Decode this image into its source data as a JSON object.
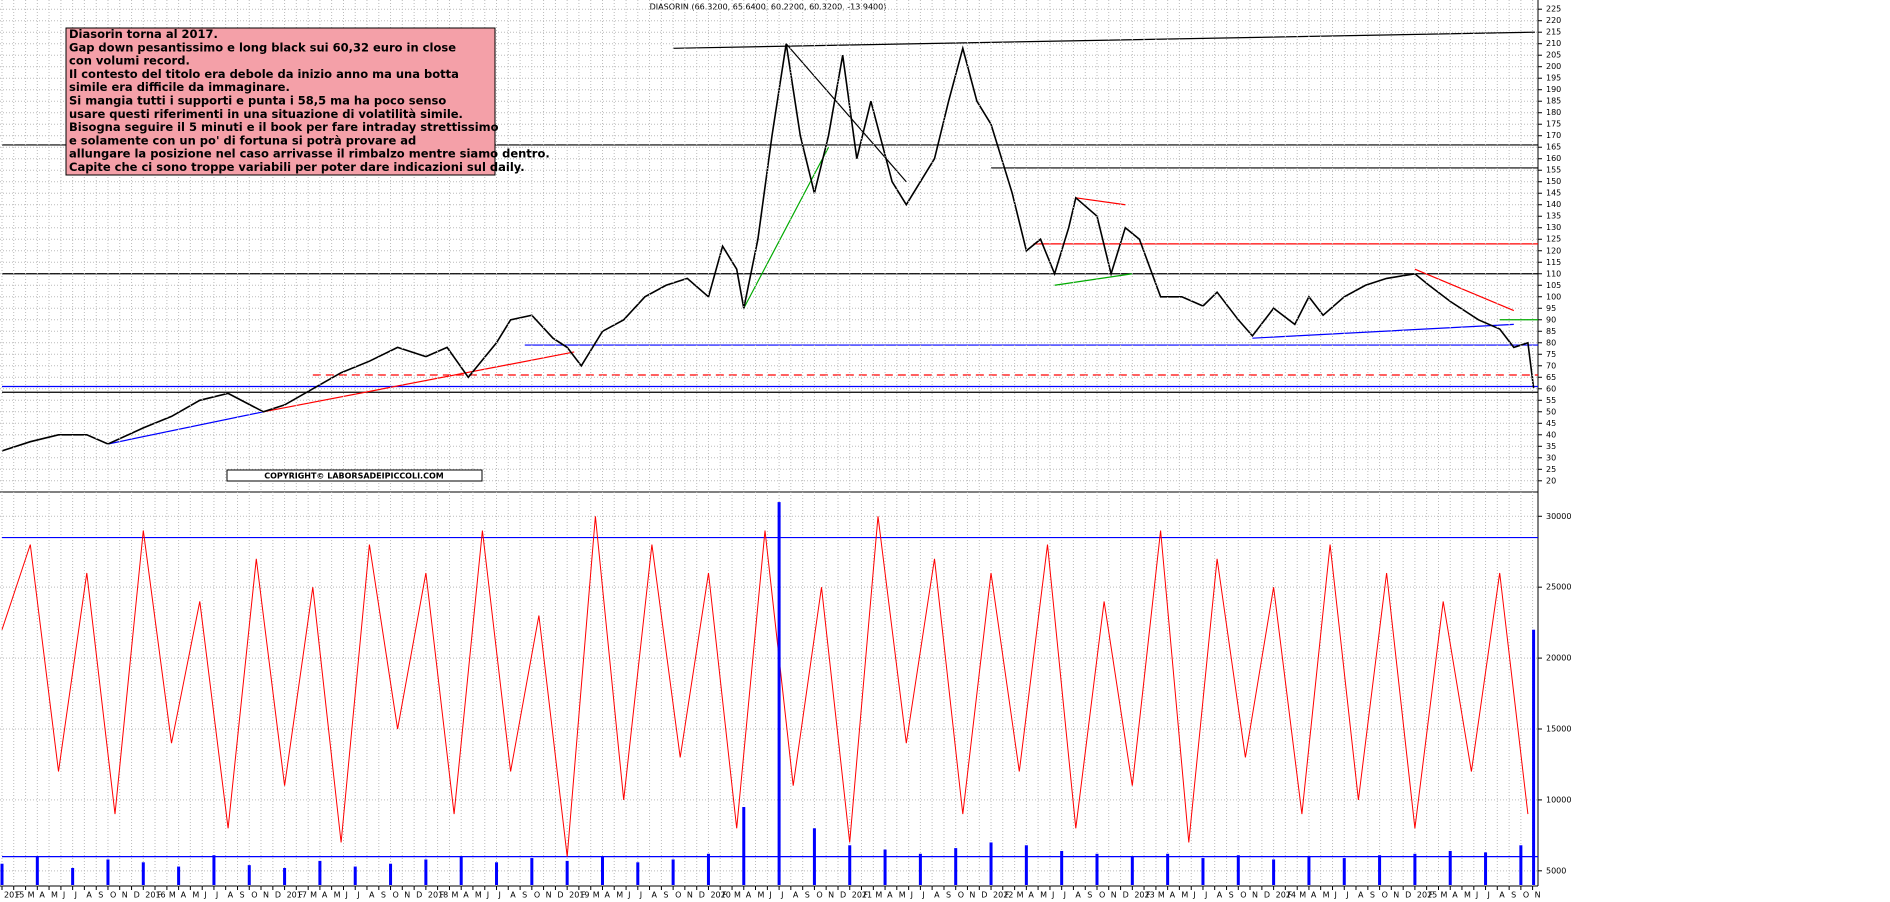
{
  "chart_data": [
    {
      "type": "line",
      "title": "DIASORIN (66.3200, 65.6400, 60.2200, 60.3200, -13.9400)",
      "annotations": [
        "Diasorin torna al 2017.",
        "Gap down pesantissimo e long black sui 60,32 euro in close",
        "con volumi record.",
        "Il contesto del titolo era debole da inizio anno ma una botta",
        "simile era difficile da immaginare.",
        "Si mangia tutti i supporti e punta i 58,5 ma ha poco senso",
        "usare questi riferimenti in una situazione di volatilità simile.",
        "Bisogna seguire il 5 minuti e il book per fare intraday strettissimo",
        "e solamente con un po' di fortuna si potrà provare ad",
        "allungare la posizione nel caso arrivasse il rimbalzo mentre siamo dentro.",
        "Capite che ci sono troppe variabili per poter dare indicazioni sul daily."
      ],
      "copyright": "COPYRIGHT© LABORSADEIPICCOLI.COM",
      "xlim": [
        2015.0,
        2025.85
      ],
      "ylim": [
        16,
        229
      ],
      "grid": true,
      "color": "#000000",
      "yticks": [
        20,
        25,
        30,
        35,
        40,
        45,
        50,
        55,
        60,
        65,
        70,
        75,
        80,
        85,
        90,
        95,
        100,
        105,
        110,
        115,
        120,
        125,
        130,
        135,
        140,
        145,
        150,
        155,
        160,
        165,
        170,
        175,
        180,
        185,
        190,
        195,
        200,
        205,
        210,
        215,
        220,
        225
      ],
      "x": [
        2015.0,
        2015.2,
        2015.4,
        2015.6,
        2015.75,
        2016.0,
        2016.2,
        2016.4,
        2016.6,
        2016.85,
        2017.0,
        2017.2,
        2017.4,
        2017.6,
        2017.8,
        2018.0,
        2018.15,
        2018.3,
        2018.5,
        2018.6,
        2018.75,
        2018.9,
        2019.0,
        2019.1,
        2019.25,
        2019.4,
        2019.55,
        2019.7,
        2019.85,
        2020.0,
        2020.1,
        2020.2,
        2020.25,
        2020.35,
        2020.45,
        2020.55,
        2020.65,
        2020.75,
        2020.85,
        2020.95,
        2021.05,
        2021.15,
        2021.3,
        2021.4,
        2021.5,
        2021.6,
        2021.7,
        2021.8,
        2021.9,
        2022.0,
        2022.05,
        2022.15,
        2022.25,
        2022.35,
        2022.45,
        2022.55,
        2022.6,
        2022.75,
        2022.85,
        2022.95,
        2023.05,
        2023.2,
        2023.35,
        2023.5,
        2023.6,
        2023.75,
        2023.85,
        2024.0,
        2024.15,
        2024.25,
        2024.35,
        2024.5,
        2024.65,
        2024.8,
        2025.0,
        2025.1,
        2025.25,
        2025.45,
        2025.6,
        2025.7,
        2025.8,
        2025.84
      ],
      "values": [
        33,
        37,
        40,
        40,
        36,
        43,
        48,
        55,
        58,
        50,
        53,
        60,
        67,
        72,
        78,
        74,
        78,
        65,
        80,
        90,
        92,
        82,
        78,
        70,
        85,
        90,
        100,
        105,
        108,
        100,
        122,
        112,
        95,
        125,
        170,
        210,
        170,
        145,
        170,
        205,
        160,
        185,
        150,
        140,
        150,
        160,
        185,
        208,
        185,
        175,
        165,
        145,
        120,
        125,
        110,
        130,
        143,
        135,
        110,
        130,
        125,
        100,
        100,
        96,
        102,
        90,
        83,
        95,
        88,
        100,
        92,
        100,
        105,
        108,
        110,
        105,
        98,
        90,
        86,
        78,
        80,
        60.32
      ],
      "levels": [
        {
          "value": 166,
          "color": "#000000",
          "from": 2015.0
        },
        {
          "value": 156,
          "color": "#000000",
          "from": 2022.0
        },
        {
          "value": 110,
          "color": "#000000",
          "from": 2015.0
        },
        {
          "value": 58.5,
          "color": "#000000",
          "from": 2015.0
        },
        {
          "value": 61,
          "color": "#0000ff",
          "from": 2015.0
        },
        {
          "value": 79,
          "color": "#0000ff",
          "from": 2018.7
        },
        {
          "value": 66,
          "color": "#ff0000",
          "from": 2017.2,
          "dash": true
        },
        {
          "value": 123,
          "color": "#ff0000",
          "from": 2022.3
        },
        {
          "value": 90,
          "color": "#00aa00",
          "from": 2025.6
        }
      ],
      "trendlines": [
        {
          "x": [
            2019.75,
            2025.85
          ],
          "y": [
            208,
            215
          ],
          "color": "#000000"
        },
        {
          "x": [
            2016.85,
            2019.05
          ],
          "y": [
            50,
            76
          ],
          "color": "#ff0000"
        },
        {
          "x": [
            2015.75,
            2016.85
          ],
          "y": [
            36,
            50
          ],
          "color": "#0000ff"
        },
        {
          "x": [
            2020.25,
            2020.85
          ],
          "y": [
            95,
            165
          ],
          "color": "#00aa00"
        },
        {
          "x": [
            2020.55,
            2021.4
          ],
          "y": [
            210,
            150
          ],
          "color": "#000000"
        },
        {
          "x": [
            2022.45,
            2023.0
          ],
          "y": [
            105,
            110
          ],
          "color": "#00aa00"
        },
        {
          "x": [
            2022.6,
            2022.95
          ],
          "y": [
            143,
            140
          ],
          "color": "#ff0000"
        },
        {
          "x": [
            2023.85,
            2025.7
          ],
          "y": [
            82,
            88
          ],
          "color": "#0000ff"
        },
        {
          "x": [
            2025.0,
            2025.7
          ],
          "y": [
            112,
            94
          ],
          "color": "#ff0000"
        }
      ]
    },
    {
      "type": "line",
      "xlim": [
        2015.0,
        2025.85
      ],
      "ylim": [
        4000,
        31500
      ],
      "grid": true,
      "yticks": [
        5000,
        10000,
        15000,
        20000,
        25000,
        30000
      ],
      "xticks": [
        2015,
        {
          "value": 2015.083,
          "label": "F"
        },
        {
          "value": 2015.167,
          "label": "M"
        },
        {
          "value": 2015.25,
          "label": "A"
        },
        {
          "value": 2015.333,
          "label": "M"
        },
        {
          "value": 2015.417,
          "label": "J"
        },
        {
          "value": 2015.5,
          "label": "J"
        },
        {
          "value": 2015.583,
          "label": "A"
        },
        {
          "value": 2015.667,
          "label": "S"
        },
        {
          "value": 2015.75,
          "label": "O"
        },
        {
          "value": 2015.833,
          "label": "N"
        },
        {
          "value": 2015.917,
          "label": "D"
        },
        2016,
        {
          "value": 2016.083,
          "label": "F"
        },
        {
          "value": 2016.167,
          "label": "M"
        },
        {
          "value": 2016.25,
          "label": "A"
        },
        {
          "value": 2016.333,
          "label": "M"
        },
        {
          "value": 2016.417,
          "label": "J"
        },
        {
          "value": 2016.5,
          "label": "J"
        },
        {
          "value": 2016.583,
          "label": "A"
        },
        {
          "value": 2016.667,
          "label": "S"
        },
        {
          "value": 2016.75,
          "label": "O"
        },
        {
          "value": 2016.833,
          "label": "N"
        },
        {
          "value": 2016.917,
          "label": "D"
        },
        2017,
        {
          "value": 2017.083,
          "label": "F"
        },
        {
          "value": 2017.167,
          "label": "M"
        },
        {
          "value": 2017.25,
          "label": "A"
        },
        {
          "value": 2017.333,
          "label": "M"
        },
        {
          "value": 2017.417,
          "label": "J"
        },
        {
          "value": 2017.5,
          "label": "J"
        },
        {
          "value": 2017.583,
          "label": "A"
        },
        {
          "value": 2017.667,
          "label": "S"
        },
        {
          "value": 2017.75,
          "label": "O"
        },
        {
          "value": 2017.833,
          "label": "N"
        },
        {
          "value": 2017.917,
          "label": "D"
        },
        2018,
        {
          "value": 2018.083,
          "label": "F"
        },
        {
          "value": 2018.167,
          "label": "M"
        },
        {
          "value": 2018.25,
          "label": "A"
        },
        {
          "value": 2018.333,
          "label": "M"
        },
        {
          "value": 2018.417,
          "label": "J"
        },
        {
          "value": 2018.5,
          "label": "J"
        },
        {
          "value": 2018.583,
          "label": "A"
        },
        {
          "value": 2018.667,
          "label": "S"
        },
        {
          "value": 2018.75,
          "label": "O"
        },
        {
          "value": 2018.833,
          "label": "N"
        },
        {
          "value": 2018.917,
          "label": "D"
        },
        2019,
        {
          "value": 2019.083,
          "label": "F"
        },
        {
          "value": 2019.167,
          "label": "M"
        },
        {
          "value": 2019.25,
          "label": "A"
        },
        {
          "value": 2019.333,
          "label": "M"
        },
        {
          "value": 2019.417,
          "label": "J"
        },
        {
          "value": 2019.5,
          "label": "J"
        },
        {
          "value": 2019.583,
          "label": "A"
        },
        {
          "value": 2019.667,
          "label": "S"
        },
        {
          "value": 2019.75,
          "label": "O"
        },
        {
          "value": 2019.833,
          "label": "N"
        },
        {
          "value": 2019.917,
          "label": "D"
        },
        2020,
        {
          "value": 2020.083,
          "label": "F"
        },
        {
          "value": 2020.167,
          "label": "M"
        },
        {
          "value": 2020.25,
          "label": "A"
        },
        {
          "value": 2020.333,
          "label": "M"
        },
        {
          "value": 2020.417,
          "label": "J"
        },
        {
          "value": 2020.5,
          "label": "J"
        },
        {
          "value": 2020.583,
          "label": "A"
        },
        {
          "value": 2020.667,
          "label": "S"
        },
        {
          "value": 2020.75,
          "label": "O"
        },
        {
          "value": 2020.833,
          "label": "N"
        },
        {
          "value": 2020.917,
          "label": "D"
        },
        2021,
        {
          "value": 2021.083,
          "label": "F"
        },
        {
          "value": 2021.167,
          "label": "M"
        },
        {
          "value": 2021.25,
          "label": "A"
        },
        {
          "value": 2021.333,
          "label": "M"
        },
        {
          "value": 2021.417,
          "label": "J"
        },
        {
          "value": 2021.5,
          "label": "J"
        },
        {
          "value": 2021.583,
          "label": "A"
        },
        {
          "value": 2021.667,
          "label": "S"
        },
        {
          "value": 2021.75,
          "label": "O"
        },
        {
          "value": 2021.833,
          "label": "N"
        },
        {
          "value": 2021.917,
          "label": "D"
        },
        2022,
        {
          "value": 2022.083,
          "label": "F"
        },
        {
          "value": 2022.167,
          "label": "M"
        },
        {
          "value": 2022.25,
          "label": "A"
        },
        {
          "value": 2022.333,
          "label": "M"
        },
        {
          "value": 2022.417,
          "label": "J"
        },
        {
          "value": 2022.5,
          "label": "J"
        },
        {
          "value": 2022.583,
          "label": "A"
        },
        {
          "value": 2022.667,
          "label": "S"
        },
        {
          "value": 2022.75,
          "label": "O"
        },
        {
          "value": 2022.833,
          "label": "N"
        },
        {
          "value": 2022.917,
          "label": "D"
        },
        2023,
        {
          "value": 2023.083,
          "label": "F"
        },
        {
          "value": 2023.167,
          "label": "M"
        },
        {
          "value": 2023.25,
          "label": "A"
        },
        {
          "value": 2023.333,
          "label": "M"
        },
        {
          "value": 2023.417,
          "label": "J"
        },
        {
          "value": 2023.5,
          "label": "J"
        },
        {
          "value": 2023.583,
          "label": "A"
        },
        {
          "value": 2023.667,
          "label": "S"
        },
        {
          "value": 2023.75,
          "label": "O"
        },
        {
          "value": 2023.833,
          "label": "N"
        },
        {
          "value": 2023.917,
          "label": "D"
        },
        2024,
        {
          "value": 2024.083,
          "label": "F"
        },
        {
          "value": 2024.167,
          "label": "M"
        },
        {
          "value": 2024.25,
          "label": "A"
        },
        {
          "value": 2024.333,
          "label": "M"
        },
        {
          "value": 2024.417,
          "label": "J"
        },
        {
          "value": 2024.5,
          "label": "J"
        },
        {
          "value": 2024.583,
          "label": "A"
        },
        {
          "value": 2024.667,
          "label": "S"
        },
        {
          "value": 2024.75,
          "label": "O"
        },
        {
          "value": 2024.833,
          "label": "N"
        },
        {
          "value": 2024.917,
          "label": "D"
        },
        2025,
        {
          "value": 2025.083,
          "label": "F"
        },
        {
          "value": 2025.167,
          "label": "M"
        },
        {
          "value": 2025.25,
          "label": "A"
        },
        {
          "value": 2025.333,
          "label": "M"
        },
        {
          "value": 2025.417,
          "label": "J"
        },
        {
          "value": 2025.5,
          "label": "J"
        },
        {
          "value": 2025.583,
          "label": "A"
        },
        {
          "value": 2025.667,
          "label": "S"
        },
        {
          "value": 2025.75,
          "label": "O"
        },
        {
          "value": 2025.833,
          "label": "N"
        }
      ],
      "levels": [
        {
          "value": 28500,
          "color": "#0000ff",
          "from": 2015.0
        },
        {
          "value": 6000,
          "color": "#0000ff",
          "from": 2015.0
        }
      ],
      "color": "#ff0000",
      "x": [
        2015.0,
        2015.2,
        2015.4,
        2015.6,
        2015.8,
        2016.0,
        2016.2,
        2016.4,
        2016.6,
        2016.8,
        2017.0,
        2017.2,
        2017.4,
        2017.6,
        2017.8,
        2018.0,
        2018.2,
        2018.4,
        2018.6,
        2018.8,
        2019.0,
        2019.2,
        2019.4,
        2019.6,
        2019.8,
        2020.0,
        2020.2,
        2020.4,
        2020.6,
        2020.8,
        2021.0,
        2021.2,
        2021.4,
        2021.6,
        2021.8,
        2022.0,
        2022.2,
        2022.4,
        2022.6,
        2022.8,
        2023.0,
        2023.2,
        2023.4,
        2023.6,
        2023.8,
        2024.0,
        2024.2,
        2024.4,
        2024.6,
        2024.8,
        2025.0,
        2025.2,
        2025.4,
        2025.6,
        2025.8
      ],
      "values": [
        22000,
        28000,
        12000,
        26000,
        9000,
        29000,
        14000,
        24000,
        8000,
        27000,
        11000,
        25000,
        7000,
        28000,
        15000,
        26000,
        9000,
        29000,
        12000,
        23000,
        6000,
        30000,
        10000,
        28000,
        13000,
        26000,
        8000,
        29000,
        11000,
        25000,
        7000,
        30000,
        14000,
        27000,
        9000,
        26000,
        12000,
        28000,
        8000,
        24000,
        11000,
        29000,
        7000,
        27000,
        13000,
        25000,
        9000,
        28000,
        10000,
        26000,
        8000,
        24000,
        12000,
        26000,
        9000
      ]
    },
    {
      "type": "bar",
      "xlim": [
        2015.0,
        2025.85
      ],
      "ylim": [
        4000,
        31500
      ],
      "color": "#0000ff",
      "x": [
        2015.0,
        2015.25,
        2015.5,
        2015.75,
        2016.0,
        2016.25,
        2016.5,
        2016.75,
        2017.0,
        2017.25,
        2017.5,
        2017.75,
        2018.0,
        2018.25,
        2018.5,
        2018.75,
        2019.0,
        2019.25,
        2019.5,
        2019.75,
        2020.0,
        2020.25,
        2020.5,
        2020.75,
        2021.0,
        2021.25,
        2021.5,
        2021.75,
        2022.0,
        2022.25,
        2022.5,
        2022.75,
        2023.0,
        2023.25,
        2023.5,
        2023.75,
        2024.0,
        2024.25,
        2024.5,
        2024.75,
        2025.0,
        2025.25,
        2025.5,
        2025.75,
        2025.84
      ],
      "values": [
        5500,
        6000,
        5200,
        5800,
        5600,
        5300,
        6100,
        5400,
        5200,
        5700,
        5300,
        5500,
        5800,
        6000,
        5600,
        5900,
        5700,
        6000,
        5600,
        5800,
        6200,
        9500,
        31000,
        8000,
        6800,
        6500,
        6200,
        6600,
        7000,
        6800,
        6400,
        6200,
        6000,
        6200,
        5900,
        6100,
        5800,
        6000,
        5900,
        6100,
        6200,
        6400,
        6300,
        6800,
        22000
      ]
    }
  ]
}
